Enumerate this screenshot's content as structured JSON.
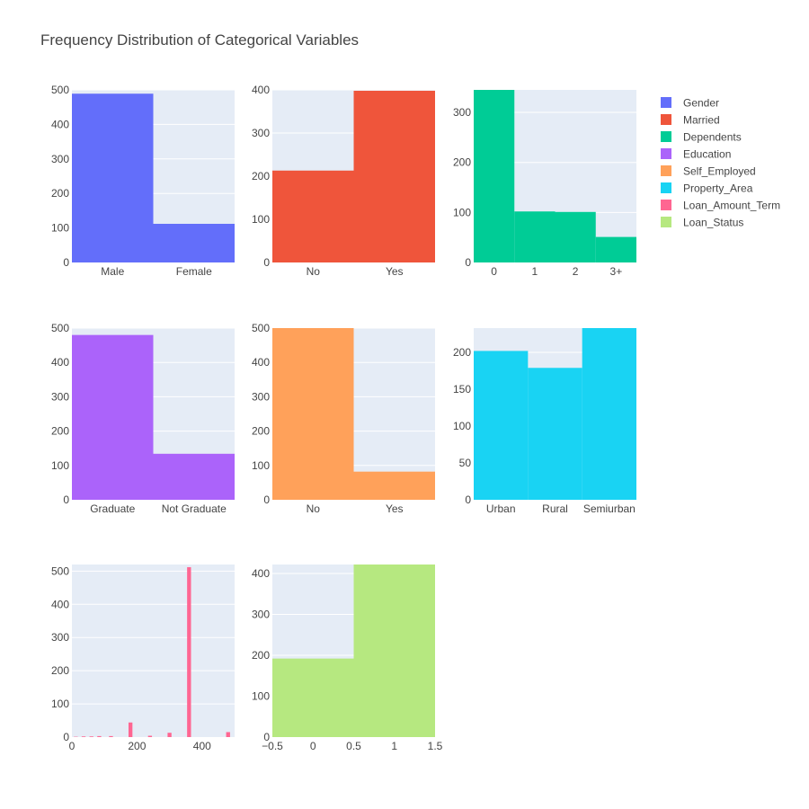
{
  "chart_data": {
    "type": "bar",
    "title": "Frequency Distribution of Categorical Variables",
    "legend": {
      "placement": "top-right",
      "items": [
        {
          "name": "Gender",
          "color": "#636efa"
        },
        {
          "name": "Married",
          "color": "#ef553b"
        },
        {
          "name": "Dependents",
          "color": "#00cc96"
        },
        {
          "name": "Education",
          "color": "#ab63fa"
        },
        {
          "name": "Self_Employed",
          "color": "#ffa15a"
        },
        {
          "name": "Property_Area",
          "color": "#19d3f3"
        },
        {
          "name": "Loan_Amount_Term",
          "color": "#ff6692"
        },
        {
          "name": "Loan_Status",
          "color": "#b6e880"
        }
      ]
    },
    "grid": true,
    "subplots": [
      {
        "name": "Gender",
        "kind": "categorical",
        "color": "#636efa",
        "categories": [
          "Male",
          "Female"
        ],
        "values": [
          489,
          112
        ],
        "ylim": [
          0,
          500
        ],
        "yticks": [
          0,
          100,
          200,
          300,
          400,
          500
        ]
      },
      {
        "name": "Married",
        "kind": "categorical",
        "color": "#ef553b",
        "categories": [
          "No",
          "Yes"
        ],
        "values": [
          213,
          398
        ],
        "ylim": [
          0,
          400
        ],
        "yticks": [
          0,
          100,
          200,
          300,
          400
        ]
      },
      {
        "name": "Dependents",
        "kind": "categorical",
        "color": "#00cc96",
        "categories": [
          "0",
          "1",
          "2",
          "3+"
        ],
        "values": [
          345,
          102,
          101,
          51
        ],
        "ylim": [
          0,
          345
        ],
        "yticks": [
          0,
          100,
          200,
          300
        ]
      },
      {
        "name": "Education",
        "kind": "categorical",
        "color": "#ab63fa",
        "categories": [
          "Graduate",
          "Not Graduate"
        ],
        "values": [
          480,
          134
        ],
        "ylim": [
          0,
          500
        ],
        "yticks": [
          0,
          100,
          200,
          300,
          400,
          500
        ]
      },
      {
        "name": "Self_Employed",
        "kind": "categorical",
        "color": "#ffa15a",
        "categories": [
          "No",
          "Yes"
        ],
        "values": [
          500,
          82
        ],
        "ylim": [
          0,
          500
        ],
        "yticks": [
          0,
          100,
          200,
          300,
          400,
          500
        ]
      },
      {
        "name": "Property_Area",
        "kind": "categorical",
        "color": "#19d3f3",
        "categories": [
          "Urban",
          "Rural",
          "Semiurban"
        ],
        "values": [
          202,
          179,
          233
        ],
        "ylim": [
          0,
          233
        ],
        "yticks": [
          0,
          50,
          100,
          150,
          200
        ]
      },
      {
        "name": "Loan_Amount_Term",
        "kind": "numeric",
        "color": "#ff6692",
        "xlim": [
          0,
          500
        ],
        "xticks": [
          0,
          200,
          400
        ],
        "ylim": [
          0,
          520
        ],
        "yticks": [
          0,
          100,
          200,
          300,
          400,
          500
        ],
        "bar_width": 12,
        "bars": [
          {
            "x": 12,
            "y": 1
          },
          {
            "x": 36,
            "y": 2
          },
          {
            "x": 60,
            "y": 2
          },
          {
            "x": 84,
            "y": 3
          },
          {
            "x": 120,
            "y": 3
          },
          {
            "x": 180,
            "y": 44
          },
          {
            "x": 240,
            "y": 4
          },
          {
            "x": 300,
            "y": 13
          },
          {
            "x": 360,
            "y": 512
          },
          {
            "x": 480,
            "y": 15
          }
        ]
      },
      {
        "name": "Loan_Status",
        "kind": "numeric",
        "color": "#b6e880",
        "xlim": [
          -0.5,
          1.5
        ],
        "xticks": [
          -0.5,
          0,
          0.5,
          1,
          1.5
        ],
        "xtick_labels": [
          "−0.5",
          "0",
          "0.5",
          "1",
          "1.5"
        ],
        "ylim": [
          0,
          422
        ],
        "yticks": [
          0,
          100,
          200,
          300,
          400
        ],
        "bar_width": 1,
        "bars": [
          {
            "x": 0,
            "y": 192
          },
          {
            "x": 1,
            "y": 422
          }
        ]
      }
    ]
  }
}
